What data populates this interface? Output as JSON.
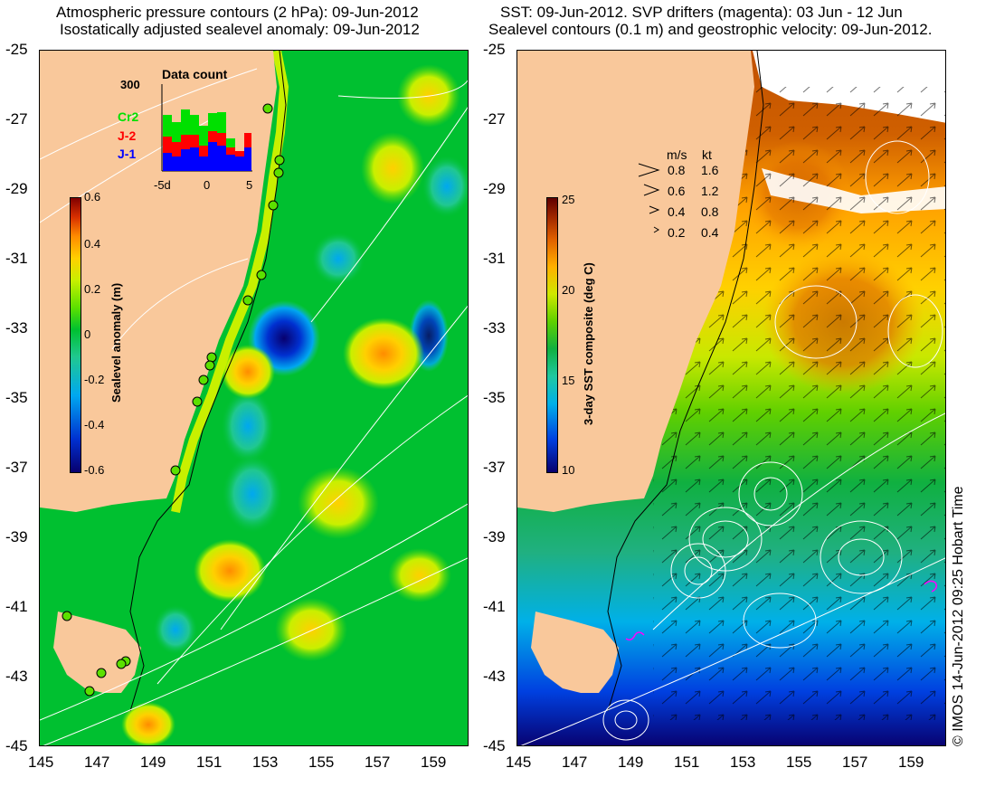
{
  "left_panel": {
    "title_line1": "Atmospheric pressure contours (2 hPa): 09-Jun-2012",
    "title_line2": "Isostatically adjusted sealevel anomaly: 09-Jun-2012",
    "colorbar": {
      "label": "Sealevel anomaly (m)",
      "ticks": [
        "0.6",
        "0.4",
        "0.2",
        "0",
        "-0.2",
        "-0.4",
        "-0.6"
      ]
    },
    "inset": {
      "title": "Data count",
      "ymax": "300",
      "xticks": [
        "-5d",
        "0",
        "5"
      ],
      "legend": [
        {
          "name": "Cr2",
          "color": "#00e000"
        },
        {
          "name": "J-2",
          "color": "#ff0000"
        },
        {
          "name": "J-1",
          "color": "#0000ff"
        }
      ]
    }
  },
  "right_panel": {
    "title_line1": "SST: 09-Jun-2012. SVP drifters (magenta): 03 Jun - 12 Jun",
    "title_line2": "Sealevel contours (0.1 m) and geostrophic velocity: 09-Jun-2012.",
    "colorbar": {
      "label": "3-day SST composite (deg C)",
      "ticks": [
        "25",
        "20",
        "15",
        "10"
      ]
    },
    "velocity_legend": {
      "header_ms": "m/s",
      "header_kt": "kt",
      "rows": [
        {
          "ms": "0.8",
          "kt": "1.6"
        },
        {
          "ms": "0.6",
          "kt": "1.2"
        },
        {
          "ms": "0.4",
          "kt": "0.8"
        },
        {
          "ms": "0.2",
          "kt": "0.4"
        }
      ]
    }
  },
  "axes": {
    "lat_ticks": [
      "-25",
      "-27",
      "-29",
      "-31",
      "-33",
      "-35",
      "-37",
      "-39",
      "-41",
      "-43",
      "-45"
    ],
    "lon_ticks": [
      "145",
      "147",
      "149",
      "151",
      "153",
      "155",
      "157",
      "159"
    ]
  },
  "credit": "© IMOS 14-Jun-2012 09:25 Hobart Time",
  "colors": {
    "land": "#f9c89b",
    "ssha_colormap": [
      "#08006e",
      "#0030d0",
      "#00a8f0",
      "#20c890",
      "#00c030",
      "#5ce000",
      "#c8f000",
      "#ffd000",
      "#ff8c00",
      "#d83000",
      "#800000"
    ],
    "sst_colormap": [
      "#08006e",
      "#0040e0",
      "#00b0e8",
      "#20c8a0",
      "#10b040",
      "#60d000",
      "#d0e800",
      "#ffb000",
      "#e06000",
      "#a02800",
      "#600000"
    ]
  }
}
